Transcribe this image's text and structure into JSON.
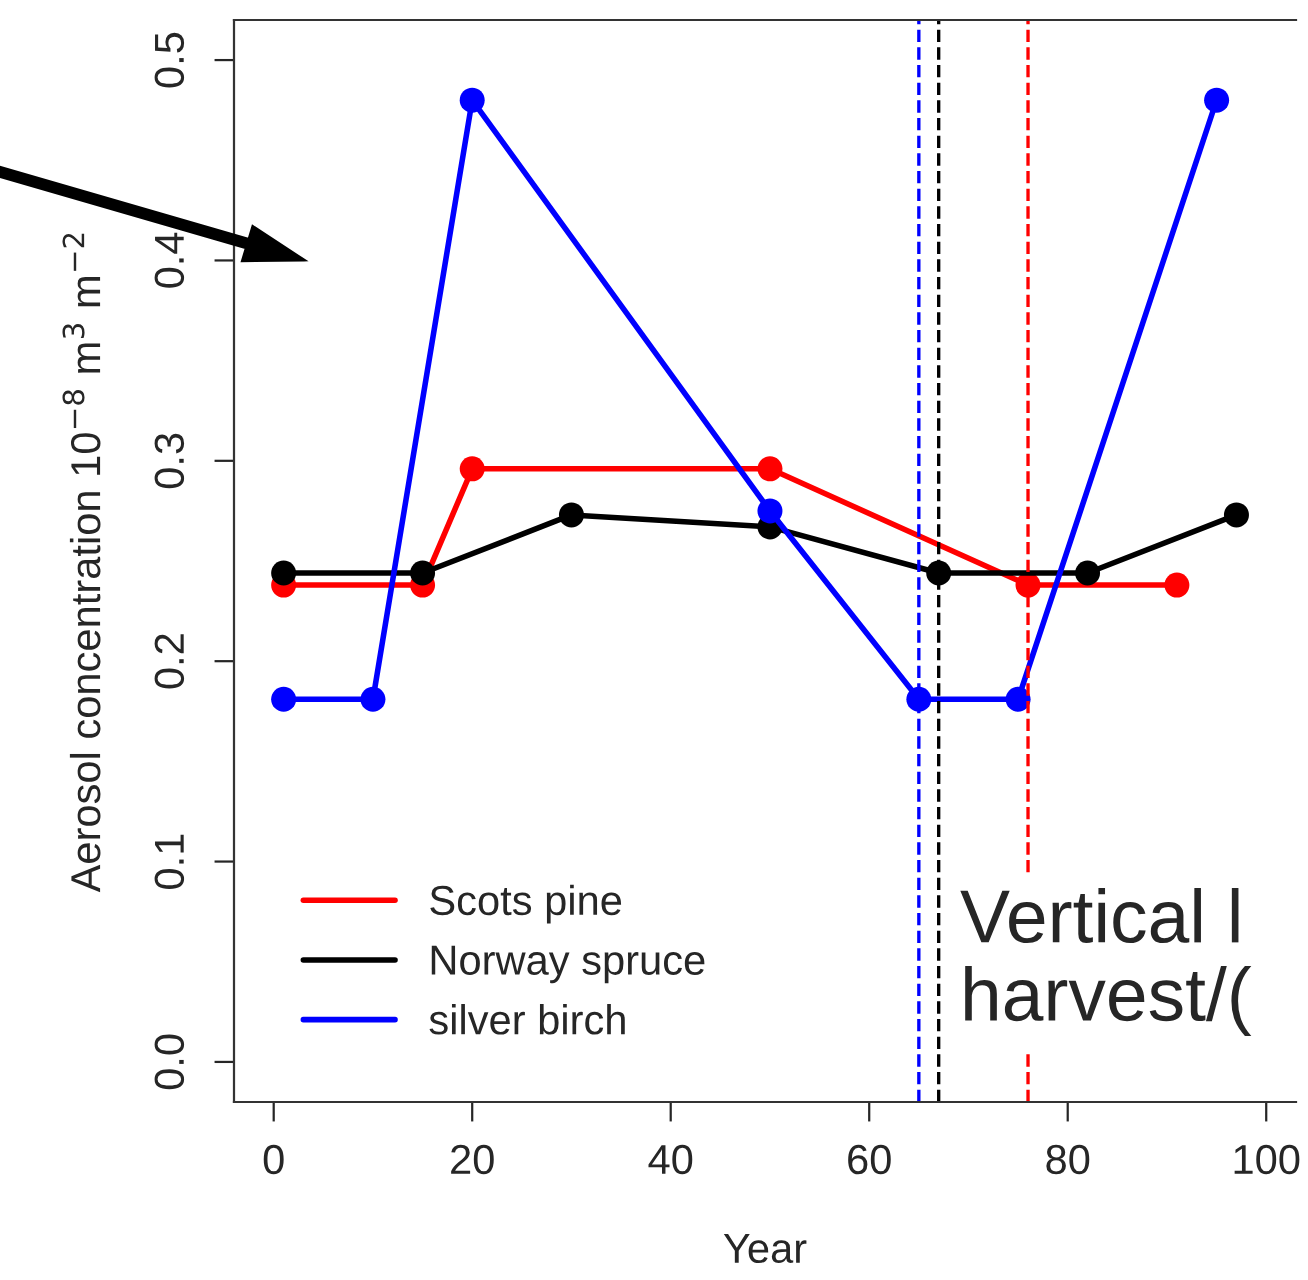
{
  "chart_data": {
    "type": "line",
    "xlabel": "Year",
    "ylabel": "Aerosol concentration 10$^{−8}$ m$^{3}$ m$^{−2}$",
    "series": [
      {
        "name": "Scots pine",
        "color": "#ff0000",
        "x": [
          1,
          15,
          20,
          50,
          76,
          91
        ],
        "values": [
          0.238,
          0.238,
          0.296,
          0.296,
          0.238,
          0.238
        ]
      },
      {
        "name": "Norway spruce",
        "color": "#000000",
        "x": [
          1,
          15,
          30,
          50,
          67,
          82,
          97
        ],
        "values": [
          0.244,
          0.244,
          0.273,
          0.267,
          0.244,
          0.244,
          0.273
        ]
      },
      {
        "name": "silver birch",
        "color": "#0000ff",
        "x": [
          1,
          10,
          20,
          50,
          65,
          75,
          95
        ],
        "values": [
          0.181,
          0.181,
          0.48,
          0.275,
          0.181,
          0.181,
          0.48
        ]
      }
    ],
    "xlim": [
      -4,
      103
    ],
    "ylim": [
      -0.02,
      0.52
    ],
    "xticks": [
      0,
      20,
      40,
      60,
      80,
      100
    ],
    "yticks": [
      {
        "value": 0,
        "label": "0.0"
      },
      {
        "value": 0.1,
        "label": "0.1"
      },
      {
        "value": 0.2,
        "label": "0.2"
      },
      {
        "value": 0.3,
        "label": "0.3"
      },
      {
        "value": 0.4,
        "label": "0.4"
      },
      {
        "value": 0.5,
        "label": "0.5"
      }
    ],
    "ref_lines": [
      {
        "axis": "x",
        "value": 65,
        "color": "#0000ff",
        "line_style": "dashed"
      },
      {
        "axis": "x",
        "value": 67,
        "color": "#000000",
        "line_style": "dashed"
      },
      {
        "axis": "x",
        "value": 76,
        "color": "#ff0000",
        "line_style": "dashed"
      }
    ],
    "annotations": [
      "Vertical l\nharvest/("
    ],
    "marker": "circle",
    "line_style": "solid",
    "grid": false,
    "legend": "bottom left"
  }
}
